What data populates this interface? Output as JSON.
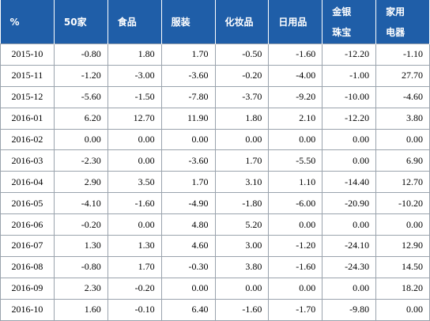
{
  "table": {
    "header": [
      [
        "%"
      ],
      [
        "50家"
      ],
      [
        "食品"
      ],
      [
        "服装"
      ],
      [
        "化妆品"
      ],
      [
        "日用品"
      ],
      [
        "金银",
        "珠宝"
      ],
      [
        "家用",
        "电器"
      ]
    ],
    "rows": [
      [
        "2015-10",
        "-0.80",
        "1.80",
        "1.70",
        "-0.50",
        "-1.60",
        "-12.20",
        "-1.10"
      ],
      [
        "2015-11",
        "-1.20",
        "-3.00",
        "-3.60",
        "-0.20",
        "-4.00",
        "-1.00",
        "27.70"
      ],
      [
        "2015-12",
        "-5.60",
        "-1.50",
        "-7.80",
        "-3.70",
        "-9.20",
        "-10.00",
        "-4.60"
      ],
      [
        "2016-01",
        "6.20",
        "12.70",
        "11.90",
        "1.80",
        "2.10",
        "-12.20",
        "3.80"
      ],
      [
        "2016-02",
        "0.00",
        "0.00",
        "0.00",
        "0.00",
        "0.00",
        "0.00",
        "0.00"
      ],
      [
        "2016-03",
        "-2.30",
        "0.00",
        "-3.60",
        "1.70",
        "-5.50",
        "0.00",
        "6.90"
      ],
      [
        "2016-04",
        "2.90",
        "3.50",
        "1.70",
        "3.10",
        "1.10",
        "-14.40",
        "12.70"
      ],
      [
        "2016-05",
        "-4.10",
        "-1.60",
        "-4.90",
        "-1.80",
        "-6.00",
        "-20.90",
        "-10.20"
      ],
      [
        "2016-06",
        "-0.20",
        "0.00",
        "4.80",
        "5.20",
        "0.00",
        "0.00",
        "0.00"
      ],
      [
        "2016-07",
        "1.30",
        "1.30",
        "4.60",
        "3.00",
        "-1.20",
        "-24.10",
        "12.90"
      ],
      [
        "2016-08",
        "-0.80",
        "1.70",
        "-0.30",
        "3.80",
        "-1.60",
        "-24.30",
        "14.50"
      ],
      [
        "2016-09",
        "2.30",
        "-0.20",
        "0.00",
        "0.00",
        "0.00",
        "0.00",
        "18.20"
      ],
      [
        "2016-10",
        "1.60",
        "-0.10",
        "6.40",
        "-1.60",
        "-1.70",
        "-9.80",
        "0.00"
      ]
    ]
  }
}
